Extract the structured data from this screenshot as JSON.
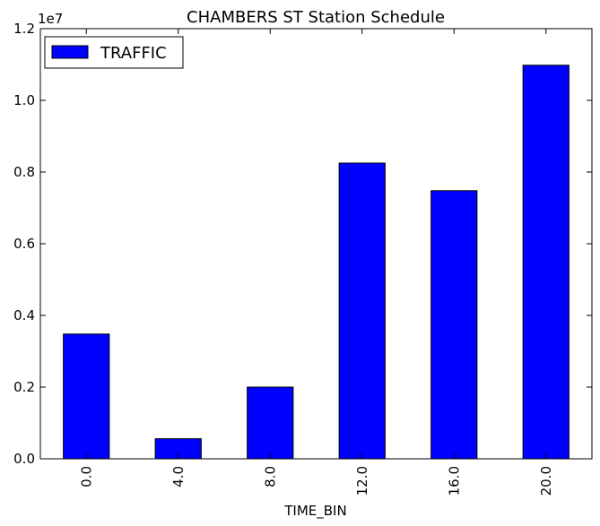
{
  "chart_data": {
    "type": "bar",
    "title": "CHAMBERS ST Station Schedule",
    "xlabel": "TIME_BIN",
    "ylabel": "",
    "categories": [
      "0.0",
      "4.0",
      "8.0",
      "12.0",
      "16.0",
      "20.0"
    ],
    "series": [
      {
        "name": "TRAFFIC",
        "values": [
          3480000,
          560000,
          2000000,
          8250000,
          7480000,
          10980000
        ]
      }
    ],
    "ylim": [
      0,
      12000000
    ],
    "yticks": [
      "0.0",
      "0.2",
      "0.4",
      "0.6",
      "0.8",
      "1.0",
      "1.2"
    ],
    "yticks_values": [
      0,
      2000000,
      4000000,
      6000000,
      8000000,
      10000000,
      12000000
    ],
    "y_offset_text": "1e7",
    "bar_color": "#0000ff",
    "grid": false,
    "legend_position": "top-left"
  }
}
